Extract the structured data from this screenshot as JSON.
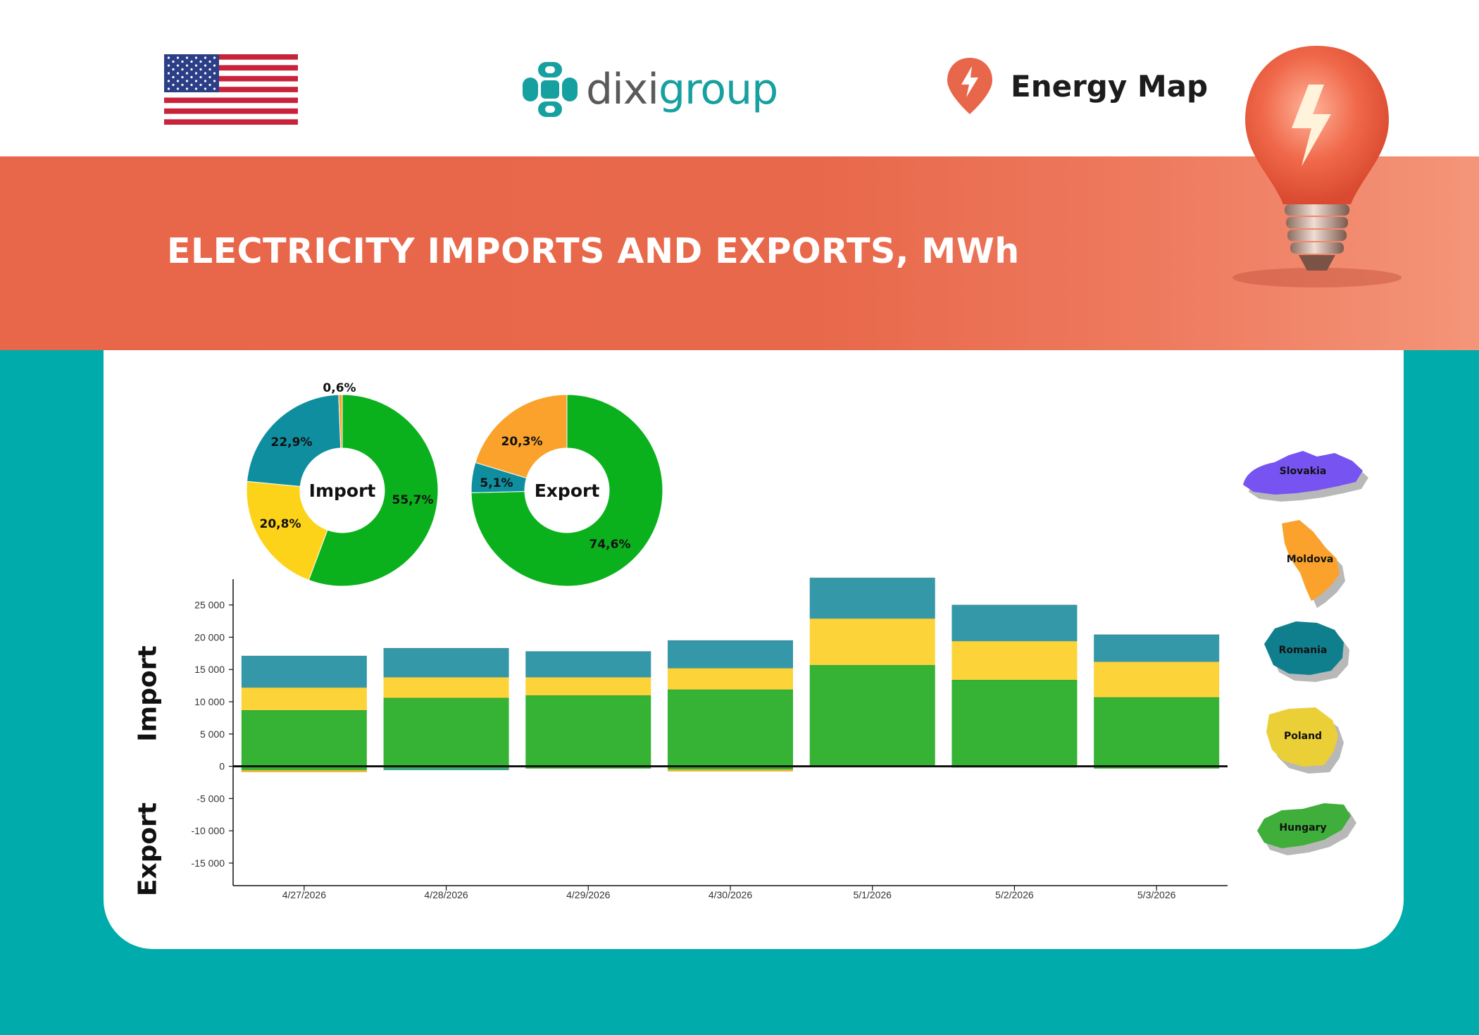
{
  "header": {
    "logo": {
      "part1": "dixi",
      "part2": "group"
    },
    "brand_title": "Energy Map",
    "flag_icon": "us-flag-icon"
  },
  "banner": {
    "title": "ELECTRICITY IMPORTS AND EXPORTS, MWh"
  },
  "labels": {
    "import_side": "Import",
    "export_side": "Export"
  },
  "colors": {
    "banner": "#E8664A",
    "teal_background": "#00ABAB",
    "hungary": "#33B233",
    "poland": "#FDD33A",
    "romania": "#3498A8",
    "moldova": "#FAA22C",
    "slovakia": "#7753F2"
  },
  "legend": [
    {
      "name": "Slovakia",
      "color": "#7753F2"
    },
    {
      "name": "Moldova",
      "color": "#FAA22C"
    },
    {
      "name": "Romania",
      "color": "#0F7F8E"
    },
    {
      "name": "Poland",
      "color": "#EBCF36"
    },
    {
      "name": "Hungary",
      "color": "#3FAE3A"
    }
  ],
  "chart_data": [
    {
      "type": "pie",
      "center_label": "Import",
      "slices": [
        {
          "name": "Hungary",
          "value": 55.7,
          "label": "55,7%",
          "color": "#0AB11D"
        },
        {
          "name": "Poland",
          "value": 20.8,
          "label": "20,8%",
          "color": "#FDD319"
        },
        {
          "name": "Romania",
          "value": 22.9,
          "label": "22,9%",
          "color": "#0F8EA0"
        },
        {
          "name": "Moldova",
          "value": 0.6,
          "label": "0,6%",
          "color": "#FAA22C"
        }
      ]
    },
    {
      "type": "pie",
      "center_label": "Export",
      "slices": [
        {
          "name": "Hungary",
          "value": 74.6,
          "label": "74,6%",
          "color": "#0AB11D"
        },
        {
          "name": "Romania",
          "value": 5.1,
          "label": "5,1%",
          "color": "#0F8EA0"
        },
        {
          "name": "Moldova",
          "value": 20.3,
          "label": "20,3%",
          "color": "#FAA22C"
        }
      ]
    },
    {
      "type": "bar",
      "stacked": true,
      "categories": [
        "4/27/2026",
        "4/28/2026",
        "4/29/2026",
        "4/30/2026",
        "5/1/2026",
        "5/2/2026",
        "5/3/2026"
      ],
      "ylim": [
        -18500,
        29000
      ],
      "yticks": [
        {
          "value": 25000,
          "label": "25 000"
        },
        {
          "value": 20000,
          "label": "20 000"
        },
        {
          "value": 15000,
          "label": "15 000"
        },
        {
          "value": 10000,
          "label": "10 000"
        },
        {
          "value": 5000,
          "label": "5 000"
        },
        {
          "value": 0,
          "label": "0"
        },
        {
          "value": -5000,
          "label": "-5 000"
        },
        {
          "value": -10000,
          "label": "-10 000"
        },
        {
          "value": -15000,
          "label": "-15 000"
        }
      ],
      "series": [
        {
          "name": "Hungary",
          "color": "#36B234",
          "values": [
            8700,
            10600,
            11000,
            11900,
            15700,
            13400,
            10700
          ]
        },
        {
          "name": "Poland",
          "color": "#FDD33A",
          "values": [
            3500,
            3200,
            2800,
            3300,
            7200,
            6000,
            5500
          ]
        },
        {
          "name": "Romania",
          "color": "#3498A8",
          "values": [
            4900,
            4500,
            4000,
            4300,
            6300,
            5600,
            4200
          ]
        }
      ],
      "export_series": [
        {
          "name": "Hungary",
          "color": "#36B234",
          "values": [
            -600,
            -400,
            -350,
            -500,
            -100,
            -200,
            -350
          ]
        },
        {
          "name": "Moldova",
          "color": "#E8B22C",
          "values": [
            -300,
            0,
            0,
            -300,
            0,
            0,
            0
          ]
        },
        {
          "name": "Romania",
          "color": "#3498A8",
          "values": [
            0,
            -200,
            0,
            0,
            0,
            0,
            0
          ]
        }
      ]
    }
  ]
}
